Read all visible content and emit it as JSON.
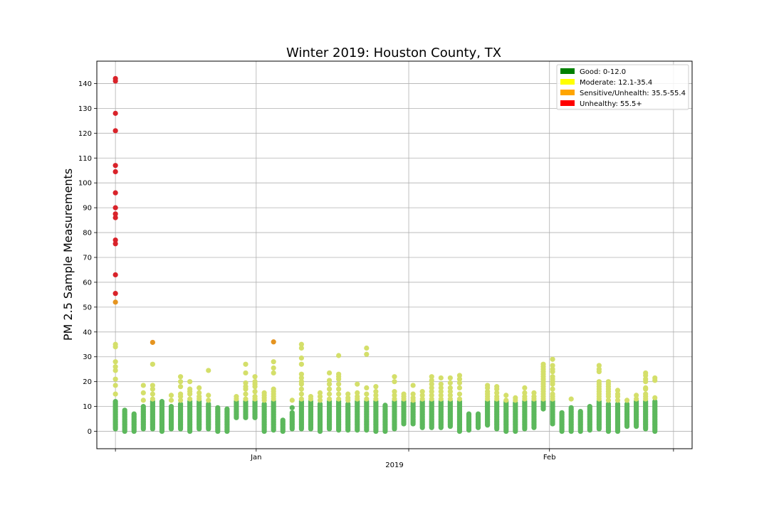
{
  "chart_data": {
    "type": "scatter",
    "title": "Winter 2019: Houston County, TX",
    "ylabel": "PM 2.5 Sample Measurements",
    "xlabel": "2019",
    "ylim": [
      -7,
      149
    ],
    "xlim": [
      -3,
      93
    ],
    "grid": true,
    "legend_position": "top-right",
    "yticks": [
      0,
      10,
      20,
      30,
      40,
      50,
      60,
      70,
      80,
      90,
      100,
      110,
      120,
      130,
      140
    ],
    "xticks": [
      {
        "day": 0,
        "label": ""
      },
      {
        "day": 22.7,
        "label": "Jan"
      },
      {
        "day": 47.3,
        "label": ""
      },
      {
        "day": 70,
        "label": "Feb"
      },
      {
        "day": 90,
        "label": ""
      }
    ],
    "categories": [
      {
        "name": "Good: 0-12.0",
        "color": "#008000",
        "point_color": "#5cb85c",
        "min": 0,
        "max": 12.0
      },
      {
        "name": "Moderate: 12.1-35.4",
        "color": "#ffff00",
        "point_color": "#d4df6a",
        "min": 12.1,
        "max": 35.4
      },
      {
        "name": "Sensitive/Unhealth: 35.5-55.4",
        "color": "#ffa500",
        "point_color": "#e59420",
        "min": 35.5,
        "max": 55.4
      },
      {
        "name": "Unhealthy: 55.5+",
        "color": "#ff0000",
        "point_color": "#d9232a",
        "min": 55.5,
        "max": null
      }
    ],
    "days": [
      {
        "day": 0,
        "min": 1,
        "max": 12,
        "extra": [
          15,
          18.5,
          21,
          24.5,
          26,
          28,
          34,
          35,
          52,
          55.5,
          63,
          75.5,
          77,
          86,
          87.5,
          90,
          96,
          104.5,
          107,
          121,
          128,
          141,
          142
        ]
      },
      {
        "day": 1.5,
        "min": 0,
        "max": 8.5,
        "extra": []
      },
      {
        "day": 3,
        "min": 0,
        "max": 7,
        "extra": []
      },
      {
        "day": 4.5,
        "min": 1,
        "max": 10,
        "extra": [
          12.5,
          15.5,
          18.5
        ]
      },
      {
        "day": 6,
        "min": 1,
        "max": 12,
        "extra": [
          13,
          15,
          17,
          18.5,
          27,
          35.8
        ]
      },
      {
        "day": 7.5,
        "min": 0,
        "max": 12,
        "extra": []
      },
      {
        "day": 9,
        "min": 1,
        "max": 10,
        "extra": [
          12.5,
          14.5
        ]
      },
      {
        "day": 10.5,
        "min": 1,
        "max": 11,
        "extra": [
          12.5,
          14,
          15,
          18,
          20,
          22
        ]
      },
      {
        "day": 12,
        "min": 0,
        "max": 12,
        "extra": [
          13,
          15,
          16,
          17,
          20
        ]
      },
      {
        "day": 13.5,
        "min": 1,
        "max": 12,
        "extra": [
          13,
          14,
          15.5,
          17.5
        ]
      },
      {
        "day": 15,
        "min": 1,
        "max": 11,
        "extra": [
          12.5,
          14.5,
          24.5
        ]
      },
      {
        "day": 16.5,
        "min": 0,
        "max": 9.5,
        "extra": []
      },
      {
        "day": 18,
        "min": 0,
        "max": 9,
        "extra": []
      },
      {
        "day": 19.5,
        "min": 5.5,
        "max": 12,
        "extra": [
          13,
          14
        ]
      },
      {
        "day": 21,
        "min": 5.5,
        "max": 12,
        "extra": [
          13,
          15,
          17,
          18,
          19.5,
          23.5,
          27
        ]
      },
      {
        "day": 22.5,
        "min": 5.5,
        "max": 12,
        "extra": [
          13,
          14,
          16,
          18,
          19,
          20,
          22
        ]
      },
      {
        "day": 24,
        "min": 0,
        "max": 11,
        "extra": [
          12.5,
          13.5,
          14.5,
          15.5
        ]
      },
      {
        "day": 25.5,
        "min": 0.5,
        "max": 12,
        "extra": [
          13,
          14,
          15,
          16,
          17,
          23.5,
          25.5,
          28,
          36
        ]
      },
      {
        "day": 27,
        "min": 0,
        "max": 4.5,
        "extra": []
      },
      {
        "day": 28.5,
        "min": 1,
        "max": 7.5,
        "extra": [
          9.5,
          12.5
        ]
      },
      {
        "day": 30,
        "min": 1,
        "max": 12,
        "extra": [
          13,
          15,
          17,
          19,
          20,
          21.5,
          23,
          27,
          29.5,
          33.5,
          35
        ]
      },
      {
        "day": 31.5,
        "min": 1,
        "max": 12,
        "extra": [
          13,
          14
        ]
      },
      {
        "day": 33,
        "min": 0,
        "max": 11,
        "extra": [
          12.5,
          14,
          15.5
        ]
      },
      {
        "day": 34.5,
        "min": 1,
        "max": 12,
        "extra": [
          13,
          15,
          17,
          19,
          20.5,
          23.5
        ]
      },
      {
        "day": 36,
        "min": 0.5,
        "max": 12,
        "extra": [
          13,
          15,
          17,
          19,
          21,
          22,
          23,
          30.5
        ]
      },
      {
        "day": 37.5,
        "min": 0.5,
        "max": 11,
        "extra": [
          12.5,
          13.5,
          15
        ]
      },
      {
        "day": 39,
        "min": 0.5,
        "max": 12,
        "extra": [
          13,
          14,
          15.5,
          19
        ]
      },
      {
        "day": 40.5,
        "min": 0.5,
        "max": 12,
        "extra": [
          13,
          15,
          17.5,
          31,
          33.5
        ]
      },
      {
        "day": 42,
        "min": 0,
        "max": 12,
        "extra": [
          13,
          14.5,
          16,
          18
        ]
      },
      {
        "day": 43.5,
        "min": 0,
        "max": 10.5,
        "extra": []
      },
      {
        "day": 45,
        "min": 1,
        "max": 12,
        "extra": [
          13,
          14.5,
          16,
          20,
          22
        ]
      },
      {
        "day": 46.5,
        "min": 3,
        "max": 12,
        "extra": [
          13,
          14,
          15
        ]
      },
      {
        "day": 48,
        "min": 3,
        "max": 11.5,
        "extra": [
          12.5,
          13.5,
          15,
          18.5
        ]
      },
      {
        "day": 49.5,
        "min": 1.5,
        "max": 12,
        "extra": [
          13,
          14.5,
          16
        ]
      },
      {
        "day": 51,
        "min": 1.5,
        "max": 12,
        "extra": [
          13,
          14.5,
          16,
          17.5,
          19,
          20.5,
          22
        ]
      },
      {
        "day": 52.5,
        "min": 1.5,
        "max": 12,
        "extra": [
          13,
          14.5,
          16,
          17.5,
          19,
          21.5
        ]
      },
      {
        "day": 54,
        "min": 2,
        "max": 12,
        "extra": [
          13,
          14.5,
          16,
          17.5,
          19.5,
          21.5
        ]
      },
      {
        "day": 55.5,
        "min": 0,
        "max": 12,
        "extra": [
          13,
          15,
          17.5,
          19.5,
          21,
          22.5
        ]
      },
      {
        "day": 57,
        "min": 0.5,
        "max": 7,
        "extra": []
      },
      {
        "day": 58.5,
        "min": 1.5,
        "max": 7,
        "extra": []
      },
      {
        "day": 60,
        "min": 2.5,
        "max": 12,
        "extra": [
          13,
          14,
          15,
          16,
          17.5,
          18.5
        ]
      },
      {
        "day": 61.5,
        "min": 1,
        "max": 12,
        "extra": [
          13,
          14,
          15.5,
          17,
          18
        ]
      },
      {
        "day": 63,
        "min": 0,
        "max": 12.5,
        "extra": [
          14.5
        ]
      },
      {
        "day": 64.5,
        "min": 0,
        "max": 11.5,
        "extra": [
          12.5,
          13.5
        ]
      },
      {
        "day": 66,
        "min": 1,
        "max": 12,
        "extra": [
          13,
          14,
          15.5,
          17.5
        ]
      },
      {
        "day": 67.5,
        "min": 1.5,
        "max": 12,
        "extra": [
          13,
          14,
          15.5
        ]
      },
      {
        "day": 69,
        "min": 9,
        "max": 12,
        "extra": [
          13,
          14,
          15,
          16,
          17,
          18,
          19,
          20,
          21,
          22,
          23,
          24,
          25,
          26,
          27
        ]
      },
      {
        "day": 70.5,
        "min": 3,
        "max": 12,
        "extra": [
          13,
          14,
          15,
          17,
          19,
          20,
          21,
          22,
          24,
          25,
          26.5,
          29
        ]
      },
      {
        "day": 72,
        "min": 0,
        "max": 7.5,
        "extra": []
      },
      {
        "day": 73.5,
        "min": 0,
        "max": 9.5,
        "extra": [
          13
        ]
      },
      {
        "day": 75,
        "min": 0,
        "max": 8,
        "extra": []
      },
      {
        "day": 76.5,
        "min": 0.5,
        "max": 10,
        "extra": []
      },
      {
        "day": 78,
        "min": 1,
        "max": 12,
        "extra": [
          13,
          14,
          15,
          16,
          17,
          18,
          19,
          20,
          24,
          25,
          26.5
        ]
      },
      {
        "day": 79.5,
        "min": 0,
        "max": 11,
        "extra": [
          12.5,
          14,
          15,
          16,
          17,
          18,
          19,
          20
        ]
      },
      {
        "day": 81,
        "min": 0,
        "max": 11,
        "extra": [
          12.5,
          14,
          15,
          16.5
        ]
      },
      {
        "day": 82.5,
        "min": 2,
        "max": 11,
        "extra": [
          12.5
        ]
      },
      {
        "day": 84,
        "min": 2,
        "max": 12,
        "extra": [
          13,
          14.5
        ]
      },
      {
        "day": 85.5,
        "min": 1,
        "max": 12,
        "extra": [
          13,
          14,
          15,
          17,
          17.5,
          20,
          21,
          22.5,
          23.5
        ]
      },
      {
        "day": 87,
        "min": 0,
        "max": 12,
        "extra": [
          13.5,
          20.5,
          21.5
        ]
      }
    ]
  }
}
